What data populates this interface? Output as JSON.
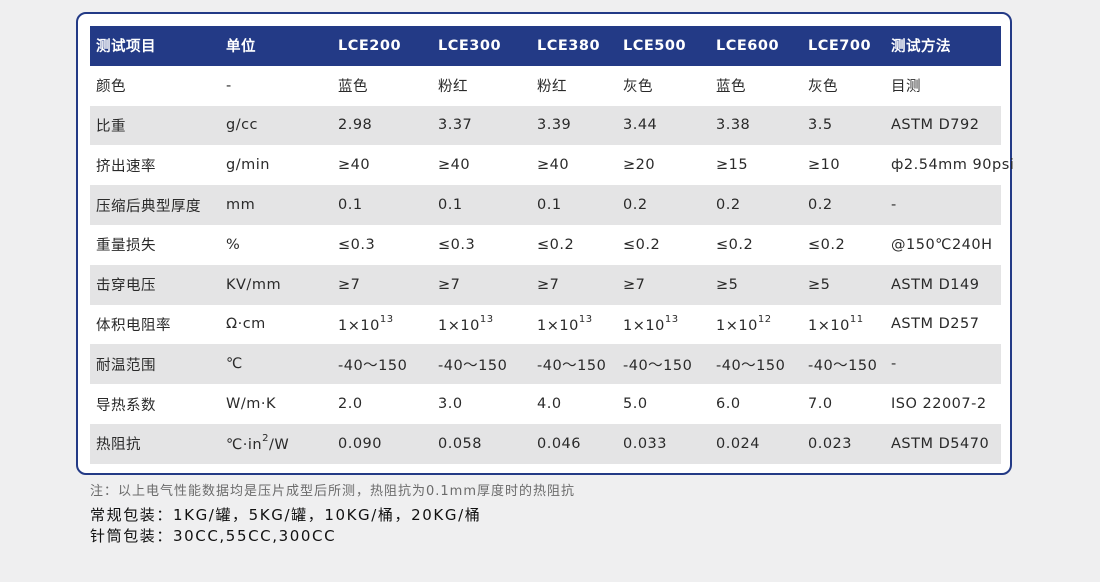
{
  "table": {
    "headers": [
      "测试项目",
      "单位",
      "LCE200",
      "LCE300",
      "LCE380",
      "LCE500",
      "LCE600",
      "LCE700",
      "测试方法"
    ],
    "rows": [
      {
        "item": "颜色",
        "unit": "-",
        "values": [
          {
            "v": "蓝色"
          },
          {
            "v": "粉红"
          },
          {
            "v": "粉红"
          },
          {
            "v": "灰色"
          },
          {
            "v": "蓝色"
          },
          {
            "v": "灰色"
          }
        ],
        "method": "目测"
      },
      {
        "item": "比重",
        "unit": "g/cc",
        "values": [
          {
            "v": "2.98"
          },
          {
            "v": "3.37"
          },
          {
            "v": "3.39"
          },
          {
            "v": "3.44"
          },
          {
            "v": "3.38"
          },
          {
            "v": "3.5"
          }
        ],
        "method": "ASTM D792"
      },
      {
        "item": "挤出速率",
        "unit": "g/min",
        "values": [
          {
            "v": "≥40"
          },
          {
            "v": "≥40"
          },
          {
            "v": "≥40"
          },
          {
            "v": "≥20"
          },
          {
            "v": "≥15"
          },
          {
            "v": "≥10"
          }
        ],
        "method": "ф2.54mm 90psi"
      },
      {
        "item": "压缩后典型厚度",
        "unit": "mm",
        "values": [
          {
            "v": "0.1"
          },
          {
            "v": "0.1"
          },
          {
            "v": "0.1"
          },
          {
            "v": "0.2"
          },
          {
            "v": "0.2"
          },
          {
            "v": "0.2"
          }
        ],
        "method": "-"
      },
      {
        "item": "重量损失",
        "unit": "%",
        "values": [
          {
            "v": "≤0.3"
          },
          {
            "v": "≤0.3"
          },
          {
            "v": "≤0.2"
          },
          {
            "v": "≤0.2"
          },
          {
            "v": "≤0.2"
          },
          {
            "v": "≤0.2"
          }
        ],
        "method": "@150℃240H"
      },
      {
        "item": "击穿电压",
        "unit": "KV/mm",
        "values": [
          {
            "v": "≥7"
          },
          {
            "v": "≥7"
          },
          {
            "v": "≥7"
          },
          {
            "v": "≥7"
          },
          {
            "v": "≥5"
          },
          {
            "v": "≥5"
          }
        ],
        "method": "ASTM D149"
      },
      {
        "item": "体积电阻率",
        "unit": "Ω·cm",
        "values": [
          {
            "v": "1×10",
            "sup": "13"
          },
          {
            "v": "1×10",
            "sup": "13"
          },
          {
            "v": "1×10",
            "sup": "13"
          },
          {
            "v": "1×10",
            "sup": "13"
          },
          {
            "v": "1×10",
            "sup": "12"
          },
          {
            "v": "1×10",
            "sup": "11"
          }
        ],
        "method": "ASTM D257"
      },
      {
        "item": "耐温范围",
        "unit": "℃",
        "values": [
          {
            "v": "-40～150"
          },
          {
            "v": "-40～150"
          },
          {
            "v": "-40～150"
          },
          {
            "v": "-40～150"
          },
          {
            "v": "-40～150"
          },
          {
            "v": "-40～150"
          }
        ],
        "method": "-"
      },
      {
        "item": "导热系数",
        "unit": "W/m·K",
        "values": [
          {
            "v": "2.0"
          },
          {
            "v": "3.0"
          },
          {
            "v": "4.0"
          },
          {
            "v": "5.0"
          },
          {
            "v": "6.0"
          },
          {
            "v": "7.0"
          }
        ],
        "method": "ISO 22007-2"
      },
      {
        "item": "热阻抗",
        "unit": {
          "pre": "℃·in",
          "sup": "2",
          "post": "/W"
        },
        "values": [
          {
            "v": "0.090"
          },
          {
            "v": "0.058"
          },
          {
            "v": "0.046"
          },
          {
            "v": "0.033"
          },
          {
            "v": "0.024"
          },
          {
            "v": "0.023"
          }
        ],
        "method": "ASTM D5470"
      }
    ]
  },
  "notes": {
    "note": "注：以上电气性能数据均是压片成型后所测，热阻抗为0.1mm厚度时的热阻抗",
    "regular_pack": "常规包装：1KG/罐，5KG/罐，10KG/桶，20KG/桶",
    "syringe_pack": "针筒包装：30CC,55CC,300CC"
  },
  "colors": {
    "header_bg": "#233a86",
    "stripe": "#e4e4e5",
    "border": "#233a86"
  }
}
